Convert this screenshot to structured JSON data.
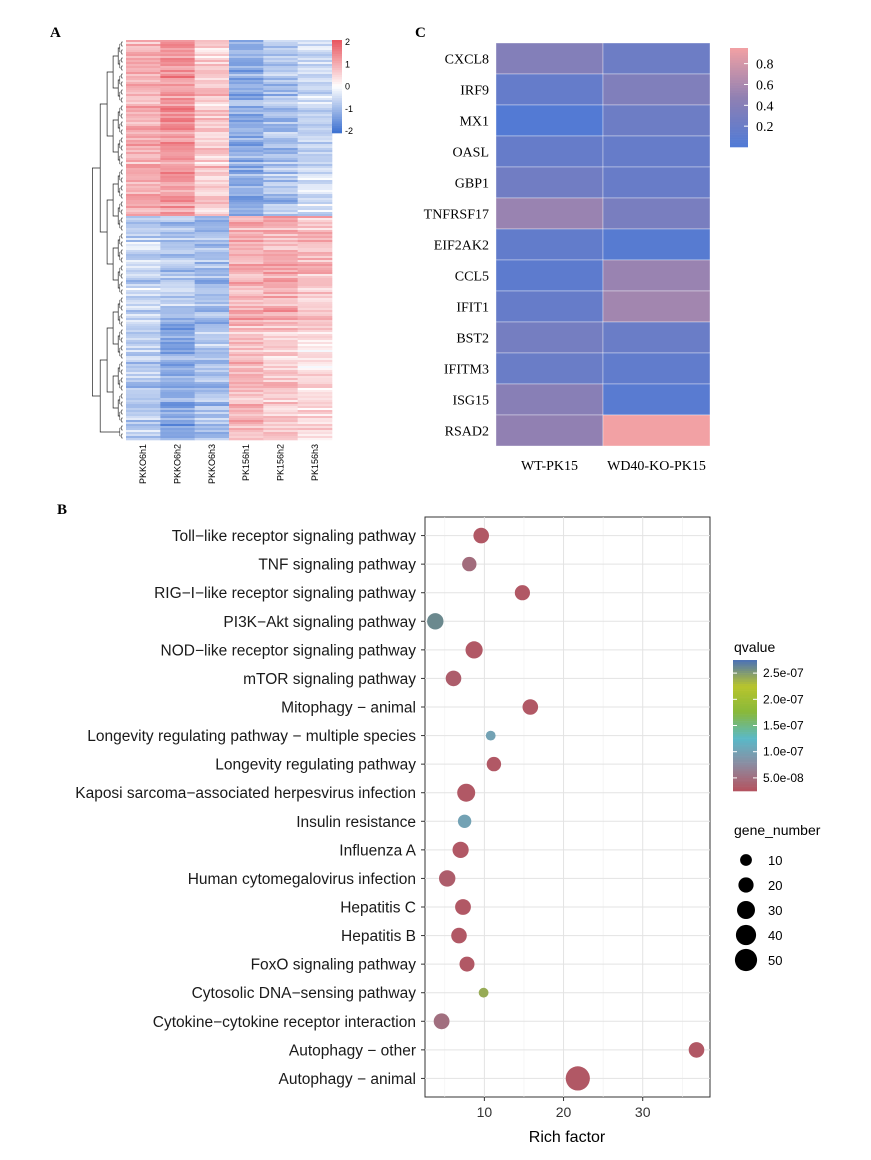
{
  "panels": {
    "a": {
      "letter": "A"
    },
    "b": {
      "letter": "B"
    },
    "c": {
      "letter": "C"
    }
  },
  "chart_data": [
    {
      "id": "A",
      "type": "heatmap",
      "columns": [
        "PKKO6h1",
        "PKKO6h2",
        "PKKO6h3",
        "PK156h1",
        "PK156h2",
        "PK156h3"
      ],
      "legend": {
        "ticks": [
          "2",
          "1",
          "0",
          "-1",
          "-2"
        ],
        "range": [
          -2,
          2
        ]
      },
      "colors": {
        "high": "#e8545e",
        "mid": "#ffffff",
        "low": "#3a6fd0"
      },
      "row_groups": [
        {
          "fraction": 0.44,
          "means": [
            0.95,
            1.25,
            0.6,
            -1.15,
            -0.85,
            -0.55
          ]
        },
        {
          "fraction": 0.27,
          "means": [
            -0.6,
            -0.8,
            -0.95,
            0.95,
            0.95,
            0.8
          ]
        },
        {
          "fraction": 0.29,
          "means": [
            -0.75,
            -1.25,
            -0.85,
            0.8,
            0.65,
            0.45
          ]
        }
      ]
    },
    {
      "id": "C",
      "type": "heatmap",
      "rows": [
        "CXCL8",
        "IRF9",
        "MX1",
        "OASL",
        "GBP1",
        "TNFRSF17",
        "EIF2AK2",
        "CCL5",
        "IFIT1",
        "BST2",
        "IFITM3",
        "ISG15",
        "RSAD2"
      ],
      "columns": [
        "WT-PK15",
        "WD40-KO-PK15"
      ],
      "values": [
        [
          0.38,
          0.22
        ],
        [
          0.16,
          0.36
        ],
        [
          0.03,
          0.22
        ],
        [
          0.17,
          0.17
        ],
        [
          0.25,
          0.18
        ],
        [
          0.52,
          0.31
        ],
        [
          0.14,
          0.06
        ],
        [
          0.1,
          0.52
        ],
        [
          0.17,
          0.56
        ],
        [
          0.28,
          0.2
        ],
        [
          0.2,
          0.13
        ],
        [
          0.42,
          0.07
        ],
        [
          0.48,
          0.95
        ]
      ],
      "legend": {
        "ticks": [
          "0.8",
          "0.6",
          "0.4",
          "0.2"
        ],
        "values": [
          0.8,
          0.6,
          0.4,
          0.2
        ],
        "range": [
          0.0,
          0.95
        ]
      },
      "colors": {
        "high": "#f2a1a4",
        "mid": "#9080b2",
        "low": "#4f7ad6"
      }
    },
    {
      "id": "B",
      "type": "scatter",
      "xlabel": "Rich factor",
      "xlim": [
        2.5,
        38.5
      ],
      "xticks": [
        10,
        20,
        30
      ],
      "xtick_labels": [
        "10",
        "20",
        "30"
      ],
      "pathways": [
        {
          "name": "Toll−like receptor signaling pathway",
          "rich_factor": 9.6,
          "gene_number": 21,
          "qvalue": 3e-08
        },
        {
          "name": "TNF signaling pathway",
          "rich_factor": 8.1,
          "gene_number": 17,
          "qvalue": 4.8e-08
        },
        {
          "name": "RIG−I−like receptor signaling pathway",
          "rich_factor": 14.8,
          "gene_number": 20,
          "qvalue": 3e-08
        },
        {
          "name": "PI3K−Akt signaling pathway",
          "rich_factor": 3.8,
          "gene_number": 24,
          "qvalue": 2.6e-07
        },
        {
          "name": "NOD−like receptor signaling pathway",
          "rich_factor": 8.7,
          "gene_number": 27,
          "qvalue": 3e-08
        },
        {
          "name": "mTOR signaling pathway",
          "rich_factor": 6.1,
          "gene_number": 21,
          "qvalue": 3.5e-08
        },
        {
          "name": "Mitophagy − animal",
          "rich_factor": 15.8,
          "gene_number": 21,
          "qvalue": 3e-08
        },
        {
          "name": "Longevity regulating pathway − multiple species",
          "rich_factor": 10.8,
          "gene_number": 6,
          "qvalue": 1e-07
        },
        {
          "name": "Longevity regulating pathway",
          "rich_factor": 11.2,
          "gene_number": 17,
          "qvalue": 3e-08
        },
        {
          "name": "Kaposi sarcoma−associated herpesvirus infection",
          "rich_factor": 7.7,
          "gene_number": 30,
          "qvalue": 3e-08
        },
        {
          "name": "Insulin resistance",
          "rich_factor": 7.5,
          "gene_number": 14,
          "qvalue": 1e-07
        },
        {
          "name": "Influenza A",
          "rich_factor": 7.0,
          "gene_number": 23,
          "qvalue": 3e-08
        },
        {
          "name": "Human cytomegalovirus infection",
          "rich_factor": 5.3,
          "gene_number": 24,
          "qvalue": 3.5e-08
        },
        {
          "name": "Hepatitis C",
          "rich_factor": 7.3,
          "gene_number": 22,
          "qvalue": 3e-08
        },
        {
          "name": "Hepatitis B",
          "rich_factor": 6.8,
          "gene_number": 21,
          "qvalue": 3e-08
        },
        {
          "name": "FoxO signaling pathway",
          "rich_factor": 7.8,
          "gene_number": 19,
          "qvalue": 3e-08
        },
        {
          "name": "Cytosolic DNA−sensing pathway",
          "rich_factor": 9.9,
          "gene_number": 6,
          "qvalue": 2.4e-07
        },
        {
          "name": "Cytokine−cytokine receptor interaction",
          "rich_factor": 4.6,
          "gene_number": 22,
          "qvalue": 5e-08
        },
        {
          "name": "Autophagy − other",
          "rich_factor": 36.8,
          "gene_number": 21,
          "qvalue": 3e-08
        },
        {
          "name": "Autophagy − animal",
          "rich_factor": 21.8,
          "gene_number": 60,
          "qvalue": 3e-08
        }
      ],
      "color_legend": {
        "title": "qvalue",
        "labels": [
          "2.5e-07",
          "2.0e-07",
          "1.5e-07",
          "1.0e-07",
          "5.0e-08"
        ],
        "values": [
          2.5e-07,
          2e-07,
          1.5e-07,
          1e-07,
          5e-08
        ],
        "range": [
          2.5e-08,
          2.75e-07
        ],
        "gradient": [
          "#b5525e",
          "#8c8ba0",
          "#5ab9c8",
          "#88b83a",
          "#b8c42c",
          "#4a70b8"
        ]
      },
      "size_legend": {
        "title": "gene_number",
        "labels": [
          "10",
          "20",
          "30",
          "40",
          "50"
        ],
        "values": [
          10,
          20,
          30,
          40,
          50
        ]
      },
      "grid": true
    }
  ]
}
